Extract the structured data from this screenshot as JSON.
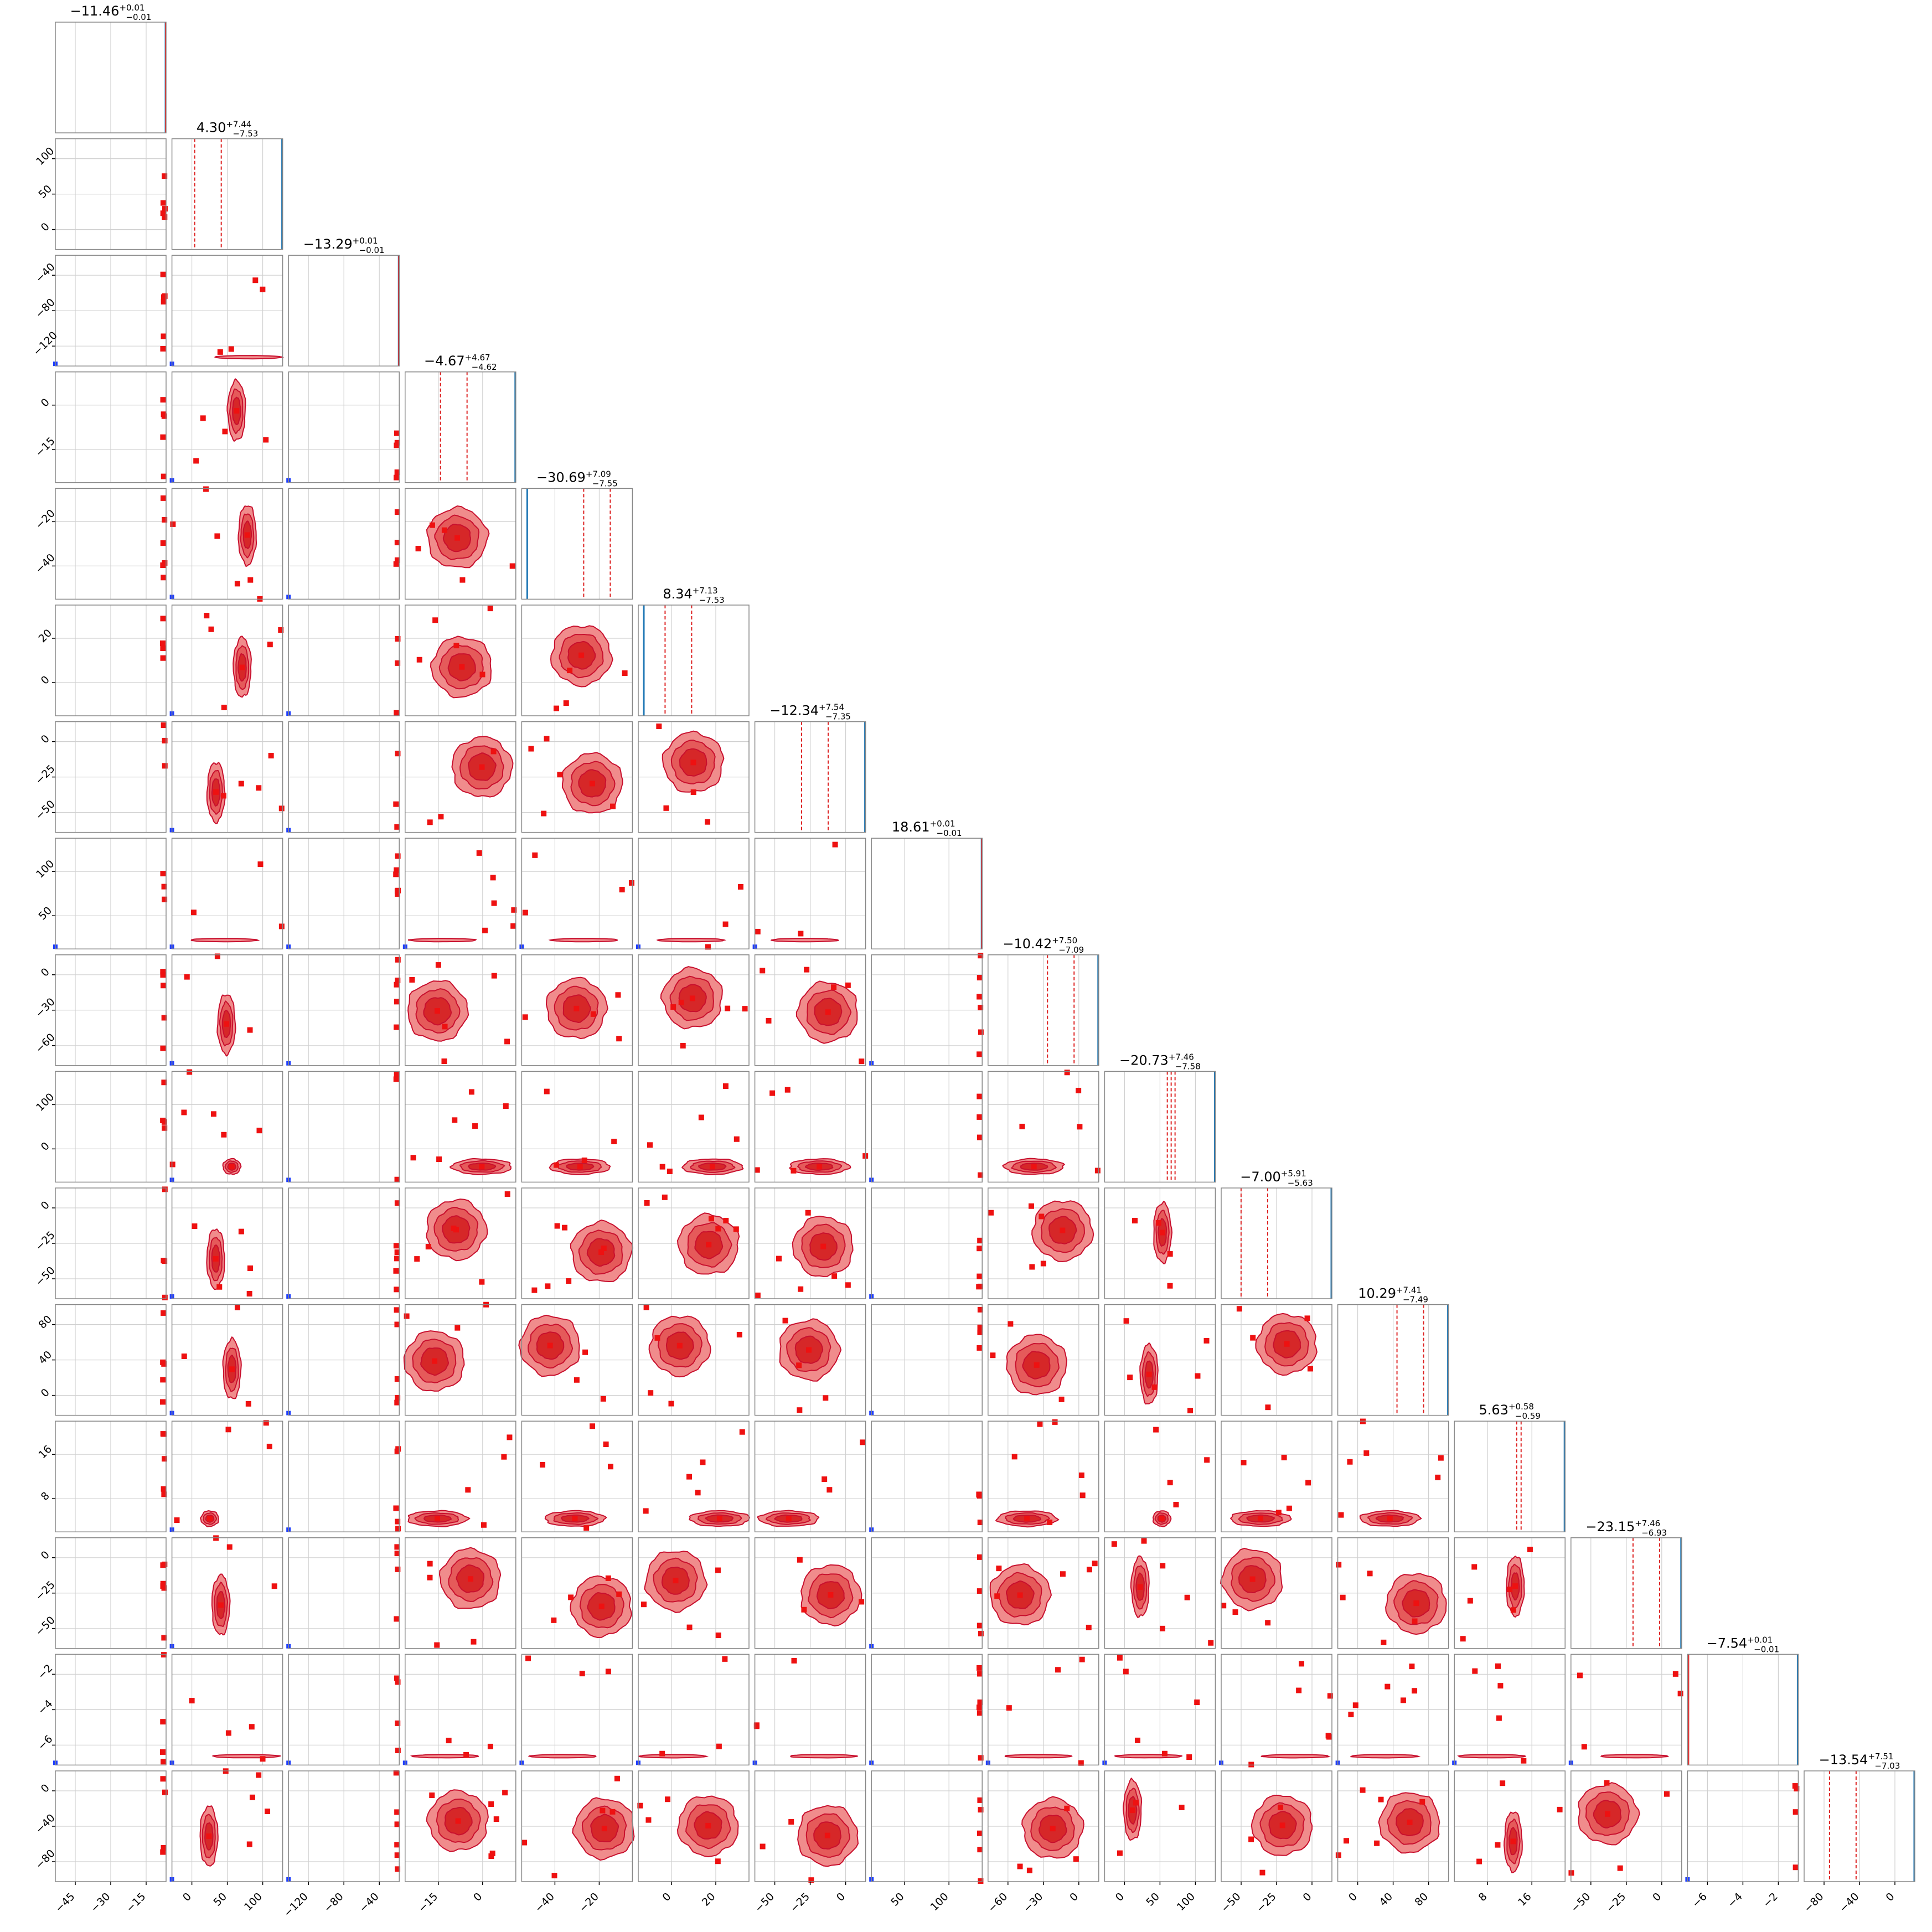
{
  "chart_data": {
    "type": "corner",
    "n_params": 16,
    "grid": true,
    "colors": {
      "fill_inner": "#d62728",
      "fill_outer": "#f08c8c",
      "contour": "#c8102e",
      "marker": "#ee1111",
      "truth_line": "#1f77b4",
      "truth_marker": "#1f3fff",
      "quantile_line": "#dd2222",
      "gridline": "#d0d0d0",
      "spine": "#888888"
    },
    "titles": [
      {
        "median": "−11.46",
        "plus": "+0.01",
        "minus": "−0.01"
      },
      {
        "median": "4.30",
        "plus": "+7.44",
        "minus": "−7.53"
      },
      {
        "median": "−13.29",
        "plus": "+0.01",
        "minus": "−0.01"
      },
      {
        "median": "−4.67",
        "plus": "+4.67",
        "minus": "−4.62"
      },
      {
        "median": "−30.69",
        "plus": "+7.09",
        "minus": "−7.55"
      },
      {
        "median": "8.34",
        "plus": "+7.13",
        "minus": "−7.53"
      },
      {
        "median": "−12.34",
        "plus": "+7.54",
        "minus": "−7.35"
      },
      {
        "median": "18.61",
        "plus": "+0.01",
        "minus": "−0.01"
      },
      {
        "median": "−10.42",
        "plus": "+7.50",
        "minus": "−7.09"
      },
      {
        "median": "−20.73",
        "plus": "+7.46",
        "minus": "−7.58"
      },
      {
        "median": "−7.00",
        "plus": "+5.91",
        "minus": "−5.63"
      },
      {
        "median": "10.29",
        "plus": "+7.41",
        "minus": "−7.49"
      },
      {
        "median": "5.63",
        "plus": "+0.58",
        "minus": "−0.59"
      },
      {
        "median": "−23.15",
        "plus": "+7.46",
        "minus": "−6.93"
      },
      {
        "median": "−7.54",
        "plus": "+0.01",
        "minus": "−0.01"
      },
      {
        "median": "−13.54",
        "plus": "+7.51",
        "minus": "−7.03"
      }
    ],
    "x_ticks": [
      [
        "−45",
        "−30",
        "−15"
      ],
      [
        "0",
        "50",
        "100"
      ],
      [
        "−120",
        "−80",
        "−40"
      ],
      [
        "−15",
        "0"
      ],
      [
        "−40",
        "−20"
      ],
      [
        "0",
        "20"
      ],
      [
        "−50",
        "−25",
        "0"
      ],
      [
        "50",
        "100"
      ],
      [
        "−60",
        "−30",
        "0"
      ],
      [
        "0",
        "50",
        "100"
      ],
      [
        "−50",
        "−25",
        "0"
      ],
      [
        "0",
        "40",
        "80"
      ],
      [
        "8",
        "16"
      ],
      [
        "−50",
        "−25",
        "0"
      ],
      [
        "−6",
        "−4",
        "−2"
      ],
      [
        "−80",
        "−40",
        "0"
      ]
    ],
    "y_ticks": [
      [],
      [
        "100",
        "50",
        "0"
      ],
      [
        "−40",
        "−80",
        "−120"
      ],
      [
        "0",
        "−15"
      ],
      [
        "−20",
        "−40"
      ],
      [
        "20",
        "0"
      ],
      [
        "0",
        "−25",
        "−50"
      ],
      [
        "100",
        "50"
      ],
      [
        "0",
        "−30",
        "−60"
      ],
      [
        "100",
        "0"
      ],
      [
        "0",
        "−25",
        "−50"
      ],
      [
        "80",
        "40",
        "0"
      ],
      [
        "16",
        "8"
      ],
      [
        "0",
        "−25",
        "−50"
      ],
      [
        "−2",
        "−4",
        "−6"
      ],
      [
        "0",
        "−40",
        "−80"
      ]
    ]
  }
}
